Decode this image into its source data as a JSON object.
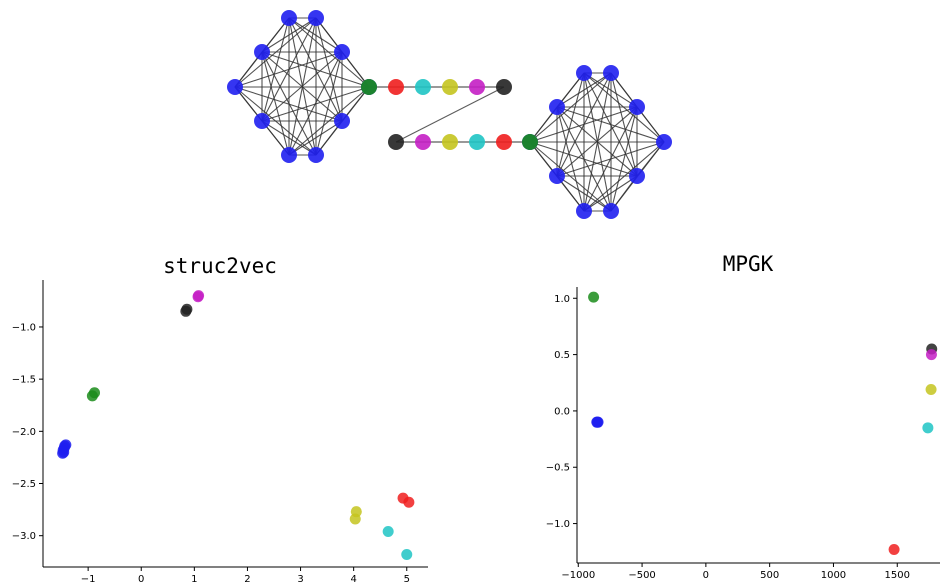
{
  "colors": {
    "blue": "#1f1ff0",
    "green": "#1a8c1a",
    "red": "#f01e1e",
    "cyan": "#1fc4c4",
    "yellow": "#c4c41f",
    "magenta": "#c41fc4",
    "black": "#222222"
  },
  "graph": {
    "left": {
      "clique": [
        "blue",
        "blue",
        "blue",
        "blue",
        "blue",
        "blue",
        "blue",
        "blue",
        "blue",
        "blue"
      ],
      "chain": [
        "green",
        "red",
        "cyan",
        "yellow",
        "magenta",
        "black"
      ]
    },
    "right": {
      "clique": [
        "blue",
        "blue",
        "blue",
        "blue",
        "blue",
        "blue",
        "blue",
        "blue",
        "blue",
        "blue"
      ],
      "chain": [
        "black",
        "magenta",
        "yellow",
        "cyan",
        "red",
        "green"
      ]
    }
  },
  "chart_data": [
    {
      "type": "scatter",
      "title": "struc2vec",
      "xlim": [
        -1.85,
        5.4
      ],
      "ylim": [
        -3.3,
        -0.55
      ],
      "xticks": [
        -1,
        0,
        1,
        2,
        3,
        4,
        5
      ],
      "yticks": [
        -3.0,
        -2.5,
        -2.0,
        -1.5,
        -1.0
      ],
      "xtick_labels": [
        "−1",
        "0",
        "1",
        "2",
        "3",
        "4",
        "5"
      ],
      "ytick_labels": [
        "−3.0",
        "−2.5",
        "−2.0",
        "−1.5",
        "−1.0"
      ],
      "points": [
        {
          "x": -1.42,
          "y": -2.13,
          "color": "blue"
        },
        {
          "x": -1.45,
          "y": -2.16,
          "color": "blue"
        },
        {
          "x": -1.47,
          "y": -2.18,
          "color": "blue"
        },
        {
          "x": -1.46,
          "y": -2.2,
          "color": "blue"
        },
        {
          "x": -1.48,
          "y": -2.21,
          "color": "blue"
        },
        {
          "x": -1.44,
          "y": -2.14,
          "color": "blue"
        },
        {
          "x": -0.88,
          "y": -1.63,
          "color": "green"
        },
        {
          "x": -0.92,
          "y": -1.66,
          "color": "green"
        },
        {
          "x": 0.86,
          "y": -0.83,
          "color": "black"
        },
        {
          "x": 0.84,
          "y": -0.85,
          "color": "black"
        },
        {
          "x": 1.08,
          "y": -0.7,
          "color": "magenta"
        },
        {
          "x": 1.07,
          "y": -0.71,
          "color": "magenta"
        },
        {
          "x": 4.05,
          "y": -2.77,
          "color": "yellow"
        },
        {
          "x": 4.03,
          "y": -2.84,
          "color": "yellow"
        },
        {
          "x": 4.65,
          "y": -2.96,
          "color": "cyan"
        },
        {
          "x": 5.0,
          "y": -3.18,
          "color": "cyan"
        },
        {
          "x": 4.93,
          "y": -2.64,
          "color": "red"
        },
        {
          "x": 5.04,
          "y": -2.68,
          "color": "red"
        }
      ]
    },
    {
      "type": "scatter",
      "title": "MPGK",
      "xlim": [
        -1010,
        1835
      ],
      "ylim": [
        -1.35,
        1.1
      ],
      "xticks": [
        -1000,
        -500,
        0,
        500,
        1000,
        1500
      ],
      "yticks": [
        -1.0,
        -0.5,
        0.0,
        0.5,
        1.0
      ],
      "xtick_labels": [
        "−1000",
        "−500",
        "0",
        "500",
        "1000",
        "1500"
      ],
      "ytick_labels": [
        "−1.0",
        "−0.5",
        "0.0",
        "0.5",
        "1.0"
      ],
      "points": [
        {
          "x": -880,
          "y": 1.01,
          "color": "green"
        },
        {
          "x": -850,
          "y": -0.1,
          "color": "blue"
        },
        {
          "x": -845,
          "y": -0.1,
          "color": "blue"
        },
        {
          "x": -855,
          "y": -0.1,
          "color": "blue"
        },
        {
          "x": 1770,
          "y": 0.55,
          "color": "black"
        },
        {
          "x": 1768,
          "y": 0.5,
          "color": "magenta"
        },
        {
          "x": 1765,
          "y": 0.19,
          "color": "yellow"
        },
        {
          "x": 1740,
          "y": -0.15,
          "color": "cyan"
        },
        {
          "x": 1475,
          "y": -1.23,
          "color": "red"
        }
      ]
    }
  ]
}
